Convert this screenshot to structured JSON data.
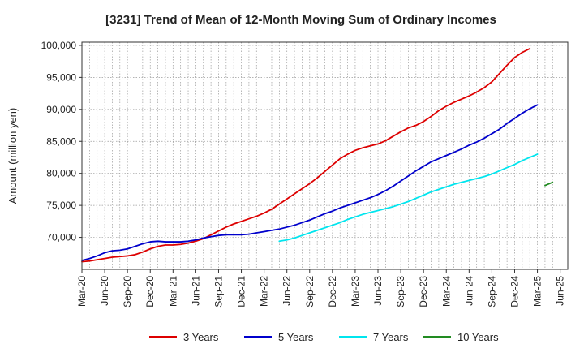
{
  "chart_data": {
    "type": "line",
    "title": "[3231]  Trend of Mean of 12-Month Moving Sum of Ordinary Incomes",
    "xlabel": "",
    "ylabel": "Amount (million yen)",
    "ylim": [
      65000,
      100500
    ],
    "yticks": [
      70000,
      75000,
      80000,
      85000,
      90000,
      95000,
      100000
    ],
    "ytick_labels": [
      "70,000",
      "75,000",
      "80,000",
      "85,000",
      "90,000",
      "95,000",
      "100,000"
    ],
    "x_start": "Mar-20",
    "x_count": 64,
    "x_tick_labels": [
      "Mar-20",
      "Jun-20",
      "Sep-20",
      "Dec-20",
      "Mar-21",
      "Jun-21",
      "Sep-21",
      "Dec-21",
      "Mar-22",
      "Jun-22",
      "Sep-22",
      "Dec-22",
      "Mar-23",
      "Jun-23",
      "Sep-23",
      "Dec-23",
      "Mar-24",
      "Jun-24",
      "Sep-24",
      "Dec-24",
      "Mar-25",
      "Jun-25"
    ],
    "grid": true,
    "legend_position": "bottom",
    "series": [
      {
        "name": "3 Years",
        "color": "#dd0000",
        "start_index": 0,
        "values": [
          66200,
          66300,
          66500,
          66700,
          66900,
          67000,
          67100,
          67300,
          67700,
          68200,
          68600,
          68800,
          68800,
          68900,
          69100,
          69400,
          69800,
          70400,
          71000,
          71600,
          72100,
          72500,
          72900,
          73300,
          73800,
          74400,
          75200,
          76000,
          76800,
          77600,
          78400,
          79300,
          80300,
          81300,
          82300,
          83000,
          83600,
          84000,
          84300,
          84600,
          85100,
          85800,
          86500,
          87100,
          87500,
          88100,
          88900,
          89800,
          90500,
          91100,
          91600,
          92100,
          92700,
          93400,
          94300,
          95600,
          96900,
          98100,
          98900,
          99500
        ]
      },
      {
        "name": "5 Years",
        "color": "#0000cc",
        "start_index": 0,
        "values": [
          66400,
          66700,
          67100,
          67600,
          67900,
          68000,
          68200,
          68600,
          69000,
          69300,
          69400,
          69300,
          69300,
          69300,
          69400,
          69600,
          69900,
          70100,
          70300,
          70400,
          70400,
          70400,
          70500,
          70700,
          70900,
          71100,
          71300,
          71600,
          71900,
          72300,
          72700,
          73200,
          73700,
          74100,
          74600,
          75000,
          75400,
          75800,
          76200,
          76700,
          77300,
          78000,
          78800,
          79600,
          80400,
          81100,
          81800,
          82300,
          82800,
          83300,
          83800,
          84400,
          84900,
          85500,
          86200,
          86900,
          87800,
          88600,
          89400,
          90100,
          90700
        ]
      },
      {
        "name": "7 Years",
        "color": "#00e5ee",
        "start_index": 26,
        "values": [
          69400,
          69600,
          69900,
          70300,
          70700,
          71100,
          71500,
          71900,
          72300,
          72800,
          73200,
          73600,
          73900,
          74200,
          74500,
          74800,
          75200,
          75600,
          76100,
          76600,
          77100,
          77500,
          77900,
          78300,
          78600,
          78900,
          79200,
          79500,
          79900,
          80400,
          80900,
          81400,
          82000,
          82500,
          83000
        ]
      },
      {
        "name": "10 Years",
        "color": "#228b22",
        "start_index": 61,
        "values": [
          78100,
          78600
        ]
      }
    ]
  }
}
